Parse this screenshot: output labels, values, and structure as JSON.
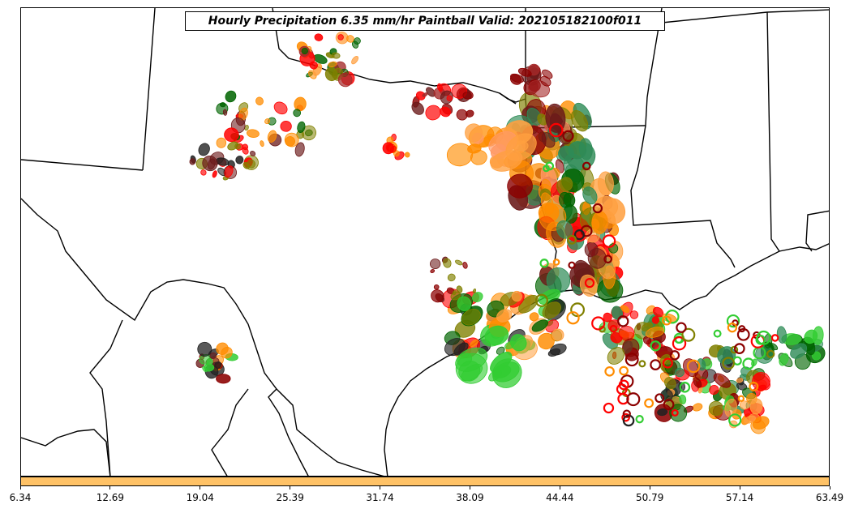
{
  "title": "Hourly Precipitation 6.35 mm/hr Paintball Valid: 202105182100f011",
  "colorbar": {
    "fill_color": "#ffc266",
    "ticks": [
      "6.34",
      "12.69",
      "19.04",
      "25.39",
      "31.74",
      "38.09",
      "44.44",
      "50.79",
      "57.14",
      "63.49"
    ]
  },
  "colors": {
    "orange": "#ff8c00",
    "light_orange": "#ffa040",
    "salmon": "#ff9966",
    "red": "#ff0000",
    "dark_red": "#8b0000",
    "brown_red": "#a52a2a",
    "maroon": "#6b1a1a",
    "dark_green": "#006400",
    "green": "#2e8b57",
    "bright_green": "#32cd32",
    "olive": "#808000",
    "olive_light": "#9a9a20",
    "black": "#222222",
    "boundary": "#000000"
  }
}
